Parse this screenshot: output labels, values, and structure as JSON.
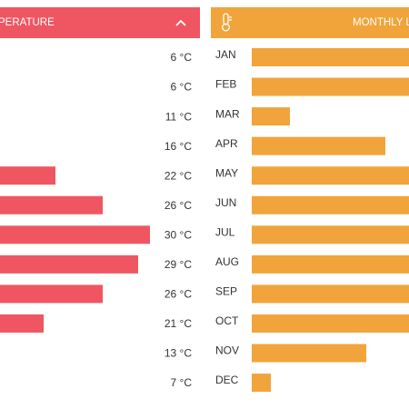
{
  "chart_data": [
    {
      "type": "bar",
      "title": "PERATURE",
      "values": [
        6,
        6,
        11,
        16,
        22,
        26,
        30,
        29,
        26,
        21,
        13,
        7
      ],
      "value_labels": [
        "6 °C",
        "6 °C",
        "11 °C",
        "16 °C",
        "22 °C",
        "26 °C",
        "30 °C",
        "29 °C",
        "26 °C",
        "21 °C",
        "13 °C",
        "7 °C"
      ],
      "color": "#ef5662",
      "xlim": [
        0,
        30
      ]
    },
    {
      "type": "bar",
      "title": "MONTHLY L",
      "categories": [
        "JAN",
        "FEB",
        "MAR",
        "APR",
        "MAY",
        "JUN",
        "JUL",
        "AUG",
        "SEP",
        "OCT",
        "NOV",
        "DEC"
      ],
      "values": [
        180,
        185,
        42,
        147,
        190,
        195,
        200,
        198,
        190,
        185,
        126,
        21
      ],
      "color": "#f1a43b",
      "xlim": [
        0,
        200
      ]
    }
  ]
}
